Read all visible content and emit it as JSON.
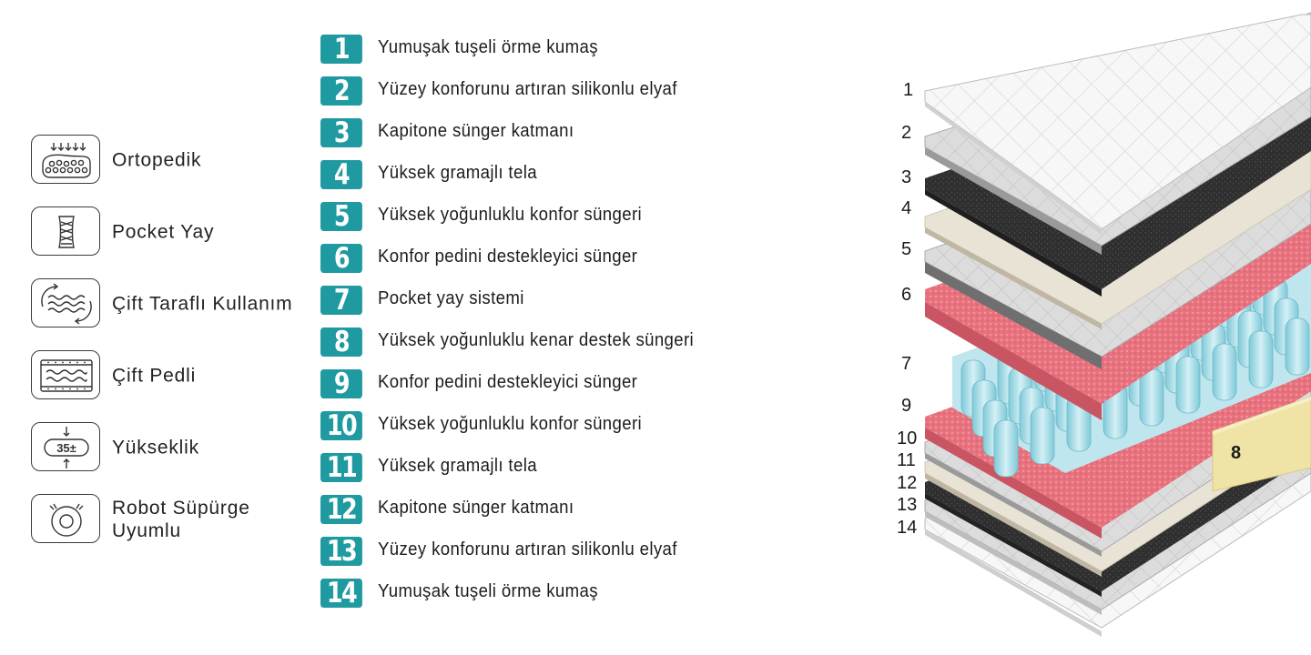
{
  "features": [
    {
      "label": "Ortopedik",
      "icon": "orthopedic-icon"
    },
    {
      "label": "Pocket Yay",
      "icon": "pocket-spring-icon"
    },
    {
      "label": "Çift Taraflı Kullanım",
      "icon": "double-sided-icon"
    },
    {
      "label": "Çift Pedli",
      "icon": "double-pad-icon"
    },
    {
      "label": "Yükseklik",
      "icon": "height-icon",
      "icon_text": "35±"
    },
    {
      "label": "Robot Süpürge\nUyumlu",
      "icon": "robot-vacuum-icon"
    }
  ],
  "layers": [
    {
      "number": "1",
      "label": "Yumuşak tuşeli örme kumaş"
    },
    {
      "number": "2",
      "label": "Yüzey konforunu artıran silikonlu elyaf"
    },
    {
      "number": "3",
      "label": "Kapitone sünger katmanı"
    },
    {
      "number": "4",
      "label": "Yüksek gramajlı tela"
    },
    {
      "number": "5",
      "label": "Yüksek yoğunluklu konfor süngeri"
    },
    {
      "number": "6",
      "label": "Konfor pedini destekleyici sünger"
    },
    {
      "number": "7",
      "label": "Pocket yay sistemi"
    },
    {
      "number": "8",
      "label": "Yüksek yoğunluklu kenar destek süngeri"
    },
    {
      "number": "9",
      "label": "Konfor pedini destekleyici sünger"
    },
    {
      "number": "10",
      "label": "Yüksek yoğunluklu konfor süngeri"
    },
    {
      "number": "11",
      "label": "Yüksek gramajlı tela"
    },
    {
      "number": "12",
      "label": "Kapitone sünger katmanı"
    },
    {
      "number": "13",
      "label": "Yüzey konforunu artıran silikonlu elyaf"
    },
    {
      "number": "14",
      "label": "Yumuşak tuşeli örme kumaş"
    }
  ],
  "diagram": {
    "side_numbers": [
      "1",
      "2",
      "3",
      "4",
      "5",
      "6",
      "7",
      "9",
      "10",
      "11",
      "12",
      "13",
      "14"
    ],
    "edge_foam_label": "8"
  },
  "colors": {
    "badge": "#1f9aa0",
    "pink_foam": "#e8727e",
    "spring_blue": "#a9dde8",
    "edge_foam": "#efe3a6",
    "felt": "#2f2f2f",
    "tela": "#e9e3d6"
  }
}
